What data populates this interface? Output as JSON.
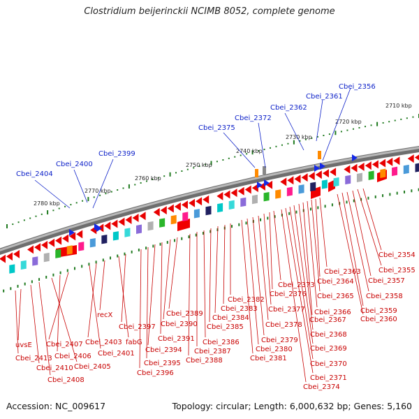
{
  "header": {
    "title": "Clostridium beijerinckii NCIMB 8052, complete genome"
  },
  "footer": {
    "accession": "Accession: NC_009617",
    "summary": "Topology: circular; Length: 6,000,632 bp; Genes: 5,160"
  },
  "colors": {
    "backbone": "#8c8c8c",
    "forward_gene": "#e80000",
    "reverse_gene": "#e80000",
    "blue_gene": "#1428e6",
    "scale_dot": "#1f7a1f",
    "label_blue": "#0a1ec8",
    "label_red": "#c80000"
  },
  "scale_ticks": [
    "2710 kbp",
    "2720 kbp",
    "2730 kbp",
    "2740 kbp",
    "2750 kbp",
    "2760 kbp",
    "2770 kbp",
    "2780 kbp"
  ],
  "blue_labels": [
    "Cbei_2356",
    "Cbei_2361",
    "Cbei_2362",
    "Cbei_2372",
    "Cbei_2375",
    "Cbei_2399",
    "Cbei_2400",
    "Cbei_2404"
  ],
  "red_labels": [
    "Cbei_2354",
    "Cbei_2355",
    "Cbei_2357",
    "Cbei_2358",
    "Cbei_2359",
    "Cbei_2360",
    "Cbei_2363",
    "Cbei_2364",
    "Cbei_2365",
    "Cbei_2366",
    "Cbei_2367",
    "Cbei_2368",
    "Cbei_2369",
    "Cbei_2370",
    "Cbei_2371",
    "Cbei_2374",
    "Cbei_2373",
    "Cbei_2376",
    "Cbei_2377",
    "Cbei_2378",
    "Cbei_2379",
    "Cbei_2380",
    "Cbei_2381",
    "Cbei_2382",
    "Cbei_2383",
    "Cbei_2384",
    "Cbei_2385",
    "Cbei_2386",
    "Cbei_2387",
    "Cbei_2388",
    "Cbei_2389",
    "Cbei_2390",
    "Cbei_2391",
    "Cbei_2394",
    "Cbei_2395",
    "Cbei_2396",
    "Cbei_2397",
    "fabG",
    "recX",
    "Cbei_2403",
    "Cbei_2401",
    "Cbei_2407",
    "Cbei_2406",
    "Cbei_2405",
    "uvsE",
    "Cbei_2413",
    "Cbei_2410",
    "Cbei_2408"
  ]
}
